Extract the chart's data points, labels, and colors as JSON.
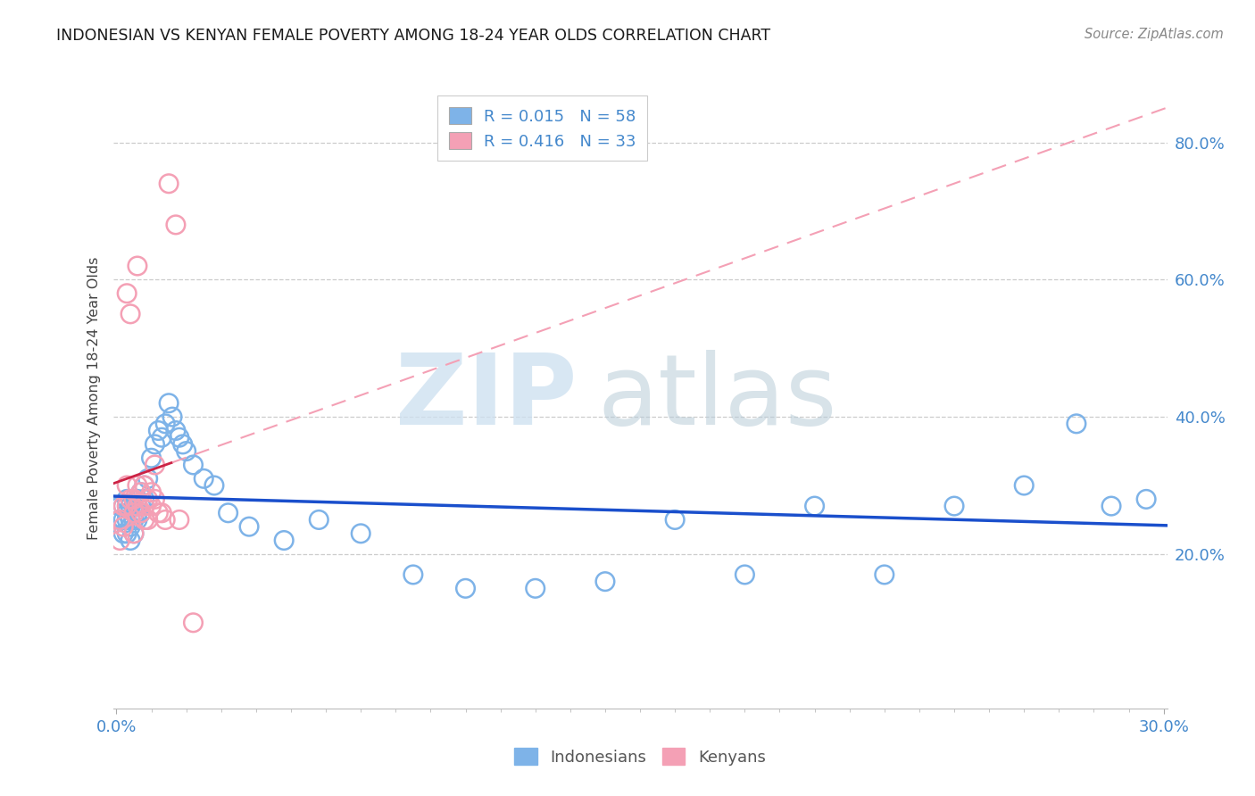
{
  "title": "INDONESIAN VS KENYAN FEMALE POVERTY AMONG 18-24 YEAR OLDS CORRELATION CHART",
  "source": "Source: ZipAtlas.com",
  "ylabel": "Female Poverty Among 18-24 Year Olds",
  "xlim": [
    -0.001,
    0.301
  ],
  "ylim": [
    -0.025,
    0.88
  ],
  "ytick_vals": [
    0.2,
    0.4,
    0.6,
    0.8
  ],
  "ytick_labels": [
    "20.0%",
    "40.0%",
    "60.0%",
    "80.0%"
  ],
  "xtick_vals": [
    0.0,
    0.3
  ],
  "xtick_labels": [
    "0.0%",
    "30.0%"
  ],
  "r_indonesian": 0.015,
  "n_indonesian": 58,
  "r_kenyan": 0.416,
  "n_kenyan": 33,
  "indonesian_color": "#7eb3e8",
  "kenyan_color": "#f4a0b5",
  "indonesian_line_color": "#1a4fcc",
  "kenyan_line_color": "#cc2244",
  "axis_tick_color": "#4488cc",
  "background_color": "#ffffff",
  "grid_color": "#cccccc",
  "indonesian_x": [
    0.001,
    0.001,
    0.002,
    0.002,
    0.002,
    0.003,
    0.003,
    0.003,
    0.003,
    0.004,
    0.004,
    0.004,
    0.004,
    0.005,
    0.005,
    0.005,
    0.005,
    0.006,
    0.006,
    0.006,
    0.007,
    0.007,
    0.007,
    0.008,
    0.008,
    0.009,
    0.01,
    0.011,
    0.012,
    0.013,
    0.014,
    0.015,
    0.016,
    0.017,
    0.018,
    0.019,
    0.02,
    0.022,
    0.025,
    0.028,
    0.032,
    0.038,
    0.048,
    0.058,
    0.07,
    0.085,
    0.1,
    0.12,
    0.14,
    0.16,
    0.18,
    0.2,
    0.22,
    0.24,
    0.26,
    0.275,
    0.285,
    0.295
  ],
  "indonesian_y": [
    0.27,
    0.25,
    0.27,
    0.25,
    0.23,
    0.28,
    0.26,
    0.25,
    0.23,
    0.27,
    0.25,
    0.24,
    0.22,
    0.27,
    0.26,
    0.25,
    0.23,
    0.28,
    0.26,
    0.25,
    0.29,
    0.27,
    0.26,
    0.3,
    0.28,
    0.31,
    0.34,
    0.36,
    0.38,
    0.37,
    0.39,
    0.42,
    0.4,
    0.38,
    0.37,
    0.36,
    0.35,
    0.33,
    0.31,
    0.3,
    0.26,
    0.24,
    0.22,
    0.25,
    0.23,
    0.17,
    0.15,
    0.15,
    0.16,
    0.25,
    0.17,
    0.27,
    0.17,
    0.27,
    0.3,
    0.39,
    0.27,
    0.28
  ],
  "kenyan_x": [
    0.001,
    0.001,
    0.002,
    0.002,
    0.003,
    0.003,
    0.003,
    0.004,
    0.004,
    0.005,
    0.005,
    0.005,
    0.006,
    0.006,
    0.006,
    0.007,
    0.007,
    0.008,
    0.008,
    0.008,
    0.009,
    0.009,
    0.01,
    0.01,
    0.011,
    0.011,
    0.012,
    0.013,
    0.014,
    0.015,
    0.017,
    0.018,
    0.022
  ],
  "kenyan_y": [
    0.25,
    0.22,
    0.27,
    0.24,
    0.3,
    0.27,
    0.58,
    0.28,
    0.55,
    0.28,
    0.26,
    0.23,
    0.3,
    0.27,
    0.62,
    0.29,
    0.26,
    0.3,
    0.27,
    0.25,
    0.28,
    0.25,
    0.29,
    0.27,
    0.33,
    0.28,
    0.26,
    0.26,
    0.25,
    0.74,
    0.68,
    0.25,
    0.1
  ]
}
